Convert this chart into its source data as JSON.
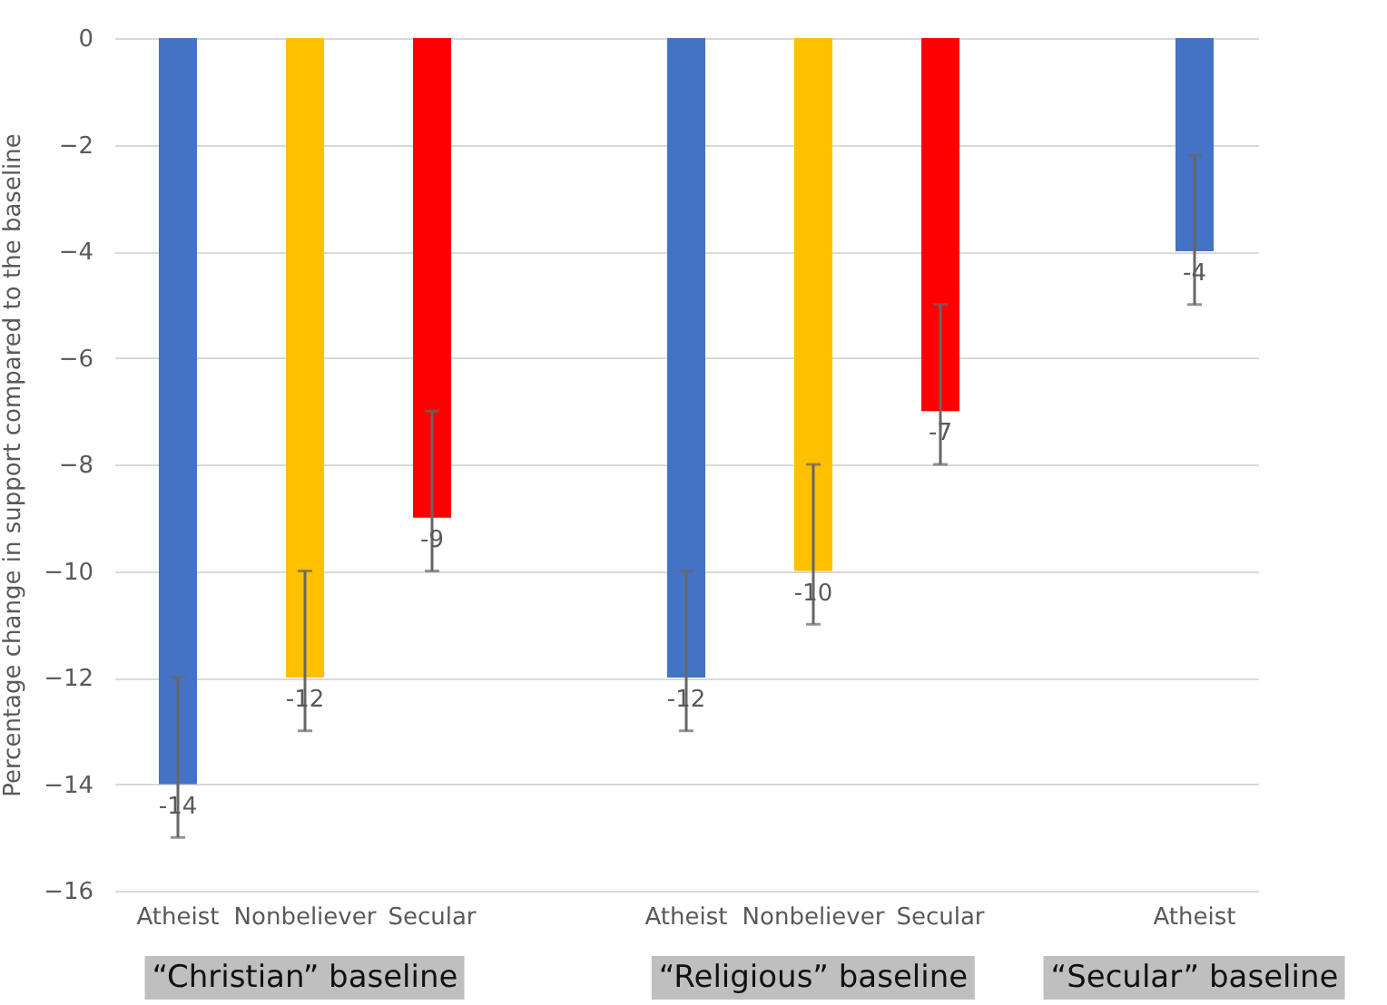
{
  "chart_data": {
    "type": "bar",
    "ylabel": "Percentage change in support compared to the baseline",
    "categories": [
      "Atheist",
      "Nonbeliever",
      "Secular",
      null,
      "Atheist",
      "Nonbeliever",
      "Secular",
      null,
      "Atheist"
    ],
    "values": [
      -14,
      -12,
      -9,
      null,
      -12,
      -10,
      -7,
      null,
      -4
    ],
    "colors": [
      "#4472c4",
      "#ffc000",
      "#ff0000",
      null,
      "#4472c4",
      "#ffc000",
      "#ff0000",
      null,
      "#4472c4"
    ],
    "errors": [
      [
        -15,
        -12
      ],
      [
        -13,
        -10
      ],
      [
        -10,
        -7
      ],
      null,
      [
        -13,
        -10
      ],
      [
        -11,
        -8
      ],
      [
        -8,
        -5
      ],
      null,
      [
        -5,
        -2.2
      ]
    ],
    "data_labels": true,
    "ylim": [
      -16,
      0
    ],
    "yticks": [
      -16,
      -14,
      -12,
      -10,
      -8,
      -6,
      -4,
      -2,
      0
    ],
    "grid": "y",
    "annotations": [
      "“Christian” baseline",
      "“Religious” baseline",
      "“Secular” baseline"
    ]
  }
}
